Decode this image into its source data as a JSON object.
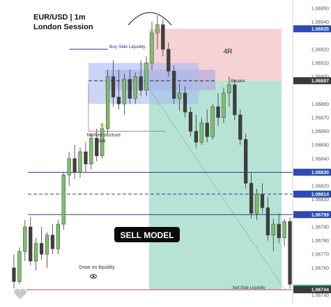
{
  "header": {
    "symbol_line": "EUR/USD | 1m",
    "session_line": "London Session"
  },
  "chart_data": {
    "type": "candlestick",
    "title": "EUR/USD | 1m",
    "subtitle": "London Session",
    "y_axis": {
      "range": [
        1.06738,
        1.06952
      ],
      "tick_labels": [
        "1.06950",
        "1.06940",
        "1.06920",
        "1.06910",
        "1.06900",
        "1.06880",
        "1.06870",
        "1.06860",
        "1.06850",
        "1.06840",
        "1.06820",
        "1.06810",
        "1.06790",
        "1.06780",
        "1.06770",
        "1.06760",
        "1.06740"
      ],
      "tick_values": [
        1.0695,
        1.0694,
        1.0692,
        1.0691,
        1.069,
        1.0688,
        1.0687,
        1.0686,
        1.0685,
        1.0684,
        1.0682,
        1.0681,
        1.0679,
        1.0678,
        1.0677,
        1.0676,
        1.0674
      ],
      "position": "right"
    },
    "highlighted_prices": [
      {
        "value": 1.06935,
        "label": "1.06935",
        "style": "blue"
      },
      {
        "value": 1.06897,
        "label": "1.06897",
        "style": "dark"
      },
      {
        "value": 1.0683,
        "label": "1.06830",
        "style": "blue"
      },
      {
        "value": 1.06814,
        "label": "1.06814",
        "style": "blue"
      },
      {
        "value": 1.06799,
        "label": "1.06799",
        "style": "blue"
      },
      {
        "value": 1.06745,
        "label": "1.06745",
        "style": "teal"
      },
      {
        "value": 1.06744,
        "label": "1.06744",
        "style": "dark"
      }
    ],
    "candles": [
      {
        "o": 1.0676,
        "h": 1.0677,
        "l": 1.06745,
        "c": 1.0675
      },
      {
        "o": 1.0675,
        "h": 1.06775,
        "l": 1.06748,
        "c": 1.06772
      },
      {
        "o": 1.06772,
        "h": 1.06795,
        "l": 1.06765,
        "c": 1.0679
      },
      {
        "o": 1.0679,
        "h": 1.06797,
        "l": 1.06762,
        "c": 1.06765
      },
      {
        "o": 1.06765,
        "h": 1.06782,
        "l": 1.06758,
        "c": 1.06778
      },
      {
        "o": 1.06778,
        "h": 1.0679,
        "l": 1.06766,
        "c": 1.0677
      },
      {
        "o": 1.0677,
        "h": 1.06786,
        "l": 1.0676,
        "c": 1.06784
      },
      {
        "o": 1.06784,
        "h": 1.06792,
        "l": 1.0677,
        "c": 1.06774
      },
      {
        "o": 1.06774,
        "h": 1.06795,
        "l": 1.0677,
        "c": 1.06792
      },
      {
        "o": 1.06792,
        "h": 1.0683,
        "l": 1.06788,
        "c": 1.06828
      },
      {
        "o": 1.06828,
        "h": 1.06845,
        "l": 1.0682,
        "c": 1.0684
      },
      {
        "o": 1.0684,
        "h": 1.0685,
        "l": 1.06825,
        "c": 1.0683
      },
      {
        "o": 1.0683,
        "h": 1.06848,
        "l": 1.06826,
        "c": 1.06845
      },
      {
        "o": 1.06845,
        "h": 1.06852,
        "l": 1.0683,
        "c": 1.06836
      },
      {
        "o": 1.06836,
        "h": 1.06858,
        "l": 1.06832,
        "c": 1.06855
      },
      {
        "o": 1.06855,
        "h": 1.06862,
        "l": 1.06838,
        "c": 1.06842
      },
      {
        "o": 1.06842,
        "h": 1.06866,
        "l": 1.0684,
        "c": 1.06862
      },
      {
        "o": 1.06862,
        "h": 1.06905,
        "l": 1.06858,
        "c": 1.069
      },
      {
        "o": 1.069,
        "h": 1.06912,
        "l": 1.06878,
        "c": 1.06885
      },
      {
        "o": 1.06885,
        "h": 1.06905,
        "l": 1.06876,
        "c": 1.0688
      },
      {
        "o": 1.0688,
        "h": 1.06902,
        "l": 1.06872,
        "c": 1.06898
      },
      {
        "o": 1.06898,
        "h": 1.06905,
        "l": 1.0688,
        "c": 1.06884
      },
      {
        "o": 1.06884,
        "h": 1.06903,
        "l": 1.0688,
        "c": 1.069
      },
      {
        "o": 1.069,
        "h": 1.06912,
        "l": 1.06886,
        "c": 1.0689
      },
      {
        "o": 1.0689,
        "h": 1.06915,
        "l": 1.06886,
        "c": 1.0691
      },
      {
        "o": 1.0691,
        "h": 1.0694,
        "l": 1.06905,
        "c": 1.06932
      },
      {
        "o": 1.06932,
        "h": 1.06945,
        "l": 1.0692,
        "c": 1.06938
      },
      {
        "o": 1.06938,
        "h": 1.06942,
        "l": 1.06915,
        "c": 1.0692
      },
      {
        "o": 1.0692,
        "h": 1.06925,
        "l": 1.069,
        "c": 1.06904
      },
      {
        "o": 1.06904,
        "h": 1.06908,
        "l": 1.0688,
        "c": 1.06884
      },
      {
        "o": 1.06884,
        "h": 1.06895,
        "l": 1.06875,
        "c": 1.06888
      },
      {
        "o": 1.06888,
        "h": 1.06893,
        "l": 1.0687,
        "c": 1.06874
      },
      {
        "o": 1.06874,
        "h": 1.06878,
        "l": 1.06856,
        "c": 1.0686
      },
      {
        "o": 1.0686,
        "h": 1.06872,
        "l": 1.06848,
        "c": 1.06852
      },
      {
        "o": 1.06852,
        "h": 1.0687,
        "l": 1.0685,
        "c": 1.06866
      },
      {
        "o": 1.06866,
        "h": 1.06876,
        "l": 1.06852,
        "c": 1.06856
      },
      {
        "o": 1.06856,
        "h": 1.0688,
        "l": 1.06854,
        "c": 1.06878
      },
      {
        "o": 1.06878,
        "h": 1.06888,
        "l": 1.06864,
        "c": 1.0687
      },
      {
        "o": 1.0687,
        "h": 1.06892,
        "l": 1.06866,
        "c": 1.06888
      },
      {
        "o": 1.06888,
        "h": 1.069,
        "l": 1.06878,
        "c": 1.06894
      },
      {
        "o": 1.06894,
        "h": 1.06898,
        "l": 1.06868,
        "c": 1.06872
      },
      {
        "o": 1.06872,
        "h": 1.06876,
        "l": 1.0685,
        "c": 1.06854
      },
      {
        "o": 1.06854,
        "h": 1.06858,
        "l": 1.06818,
        "c": 1.06822
      },
      {
        "o": 1.06822,
        "h": 1.0683,
        "l": 1.06796,
        "c": 1.068
      },
      {
        "o": 1.068,
        "h": 1.06818,
        "l": 1.06795,
        "c": 1.06814
      },
      {
        "o": 1.06814,
        "h": 1.06822,
        "l": 1.068,
        "c": 1.06804
      },
      {
        "o": 1.06804,
        "h": 1.06812,
        "l": 1.0678,
        "c": 1.06784
      },
      {
        "o": 1.06784,
        "h": 1.06796,
        "l": 1.06772,
        "c": 1.06792
      },
      {
        "o": 1.06792,
        "h": 1.068,
        "l": 1.06778,
        "c": 1.06782
      },
      {
        "o": 1.06782,
        "h": 1.06796,
        "l": 1.06776,
        "c": 1.06794
      },
      {
        "o": 1.06794,
        "h": 1.06797,
        "l": 1.06745,
        "c": 1.06748
      }
    ],
    "zones": [
      {
        "name": "4R",
        "kind": "stop-loss",
        "x_range": [
          25,
          49
        ],
        "y_range": [
          1.06897,
          1.06935
        ]
      },
      {
        "name": "take-profit",
        "kind": "target",
        "x_range": [
          25,
          49
        ],
        "y_range": [
          1.06744,
          1.06897
        ]
      },
      {
        "name": "fvg-purple",
        "kind": "imbalance",
        "x_range": [
          17,
          37
        ],
        "y_range": [
          1.0689,
          1.06905
        ]
      },
      {
        "name": "fvg-blue",
        "kind": "imbalance",
        "x_range": [
          14,
          34
        ],
        "y_range": [
          1.0688,
          1.0691
        ]
      }
    ],
    "levels": [
      {
        "value": 1.06897,
        "style": "dashed",
        "label": "Breaker"
      },
      {
        "value": 1.0683,
        "style": "solid"
      },
      {
        "value": 1.06814,
        "style": "dashed"
      },
      {
        "value": 1.06799,
        "style": "solid"
      },
      {
        "value": 1.06744,
        "style": "solid-red"
      }
    ],
    "annotations": {
      "buy_side_liquidity": "Buy Side Liquidity",
      "breaker": "Breaker",
      "market_structure_shift": [
        "Market stucture",
        "shift"
      ],
      "sell_model": "SELL MODEL",
      "draw_on_liquidity": "Draw on liquidity",
      "sell_side_liquidity": "Sell Side Liquidity",
      "risk_reward": "4R"
    },
    "colors": {
      "bull": "#7fbf6a",
      "bear": "#3f3f3f",
      "stop_zone": "#f4c7c9",
      "target_zone": "#9ed9c7",
      "fvg_purple": "#b7a9df",
      "fvg_blue": "#a9bbf2",
      "level_blue": "#2a3c8f",
      "sell_side_red": "#d14747",
      "price_box_blue": "#2d4ab0",
      "price_box_dark": "#3a3a3a",
      "price_box_teal": "#2a8f71"
    }
  }
}
